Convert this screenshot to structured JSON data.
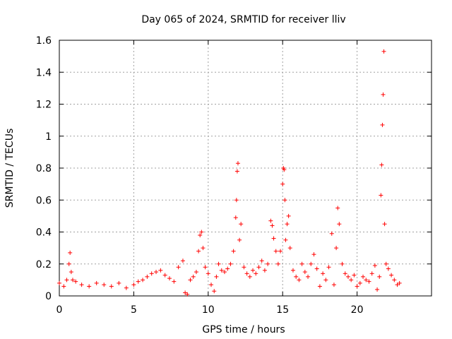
{
  "chart_data": {
    "type": "scatter",
    "title": "Day 065 of 2024, SRMTID for receiver lliv",
    "xlabel": "GPS time / hours",
    "ylabel": "SRMTID / TECUs",
    "xlim": [
      0,
      25
    ],
    "ylim": [
      0,
      1.6
    ],
    "grid": true,
    "marker": "+",
    "x_ticks": [
      0,
      5,
      10,
      15,
      20
    ],
    "x_tick_labels": [
      "0",
      "5",
      "10",
      "15",
      "20"
    ],
    "y_ticks": [
      0,
      0.2,
      0.4,
      0.6,
      0.8,
      1.0,
      1.2,
      1.4,
      1.6
    ],
    "y_tick_labels": [
      "0",
      "0.2",
      "0.4",
      "0.6",
      "0.8",
      "1",
      "1.2",
      "1.4",
      "1.6"
    ],
    "series": [
      {
        "name": "SRMTID",
        "color": "#ff0000",
        "x": [
          0.0,
          0.3,
          0.5,
          0.65,
          0.72,
          0.8,
          0.9,
          1.1,
          1.5,
          2.0,
          2.5,
          3.0,
          3.5,
          4.0,
          4.5,
          5.0,
          5.3,
          5.6,
          5.9,
          6.2,
          6.5,
          6.8,
          7.1,
          7.4,
          7.7,
          8.0,
          8.3,
          8.45,
          8.6,
          8.8,
          9.0,
          9.2,
          9.35,
          9.45,
          9.55,
          9.65,
          9.8,
          10.0,
          10.2,
          10.4,
          10.55,
          10.7,
          10.9,
          11.1,
          11.3,
          11.5,
          11.7,
          11.85,
          11.9,
          11.95,
          12.0,
          12.1,
          12.2,
          12.4,
          12.6,
          12.8,
          13.0,
          13.2,
          13.4,
          13.6,
          13.8,
          14.0,
          14.2,
          14.3,
          14.4,
          14.55,
          14.7,
          14.85,
          15.0,
          15.05,
          15.1,
          15.15,
          15.2,
          15.3,
          15.4,
          15.5,
          15.7,
          15.9,
          16.1,
          16.3,
          16.5,
          16.7,
          16.9,
          17.1,
          17.3,
          17.5,
          17.7,
          17.9,
          18.1,
          18.3,
          18.45,
          18.6,
          18.7,
          18.8,
          19.0,
          19.2,
          19.4,
          19.6,
          19.8,
          20.0,
          20.2,
          20.4,
          20.6,
          20.8,
          21.0,
          21.2,
          21.35,
          21.5,
          21.6,
          21.65,
          21.7,
          21.75,
          21.8,
          21.85,
          21.95,
          22.1,
          22.3,
          22.5,
          22.7,
          22.85
        ],
        "y": [
          0.08,
          0.06,
          0.1,
          0.2,
          0.27,
          0.15,
          0.1,
          0.09,
          0.07,
          0.06,
          0.08,
          0.07,
          0.06,
          0.08,
          0.05,
          0.07,
          0.09,
          0.1,
          0.12,
          0.14,
          0.15,
          0.16,
          0.13,
          0.11,
          0.09,
          0.18,
          0.22,
          0.02,
          0.01,
          0.1,
          0.12,
          0.15,
          0.28,
          0.38,
          0.4,
          0.3,
          0.18,
          0.14,
          0.07,
          0.03,
          0.12,
          0.2,
          0.16,
          0.15,
          0.17,
          0.2,
          0.28,
          0.49,
          0.6,
          0.78,
          0.83,
          0.35,
          0.45,
          0.18,
          0.14,
          0.12,
          0.16,
          0.14,
          0.18,
          0.22,
          0.16,
          0.2,
          0.47,
          0.44,
          0.36,
          0.28,
          0.2,
          0.28,
          0.7,
          0.8,
          0.79,
          0.6,
          0.35,
          0.45,
          0.5,
          0.3,
          0.16,
          0.12,
          0.1,
          0.2,
          0.15,
          0.12,
          0.2,
          0.26,
          0.17,
          0.06,
          0.14,
          0.1,
          0.18,
          0.39,
          0.07,
          0.3,
          0.55,
          0.45,
          0.2,
          0.14,
          0.12,
          0.1,
          0.13,
          0.06,
          0.08,
          0.12,
          0.1,
          0.09,
          0.14,
          0.19,
          0.04,
          0.12,
          0.63,
          0.82,
          1.07,
          1.26,
          1.53,
          0.45,
          0.2,
          0.17,
          0.13,
          0.1,
          0.07,
          0.08
        ]
      }
    ]
  }
}
